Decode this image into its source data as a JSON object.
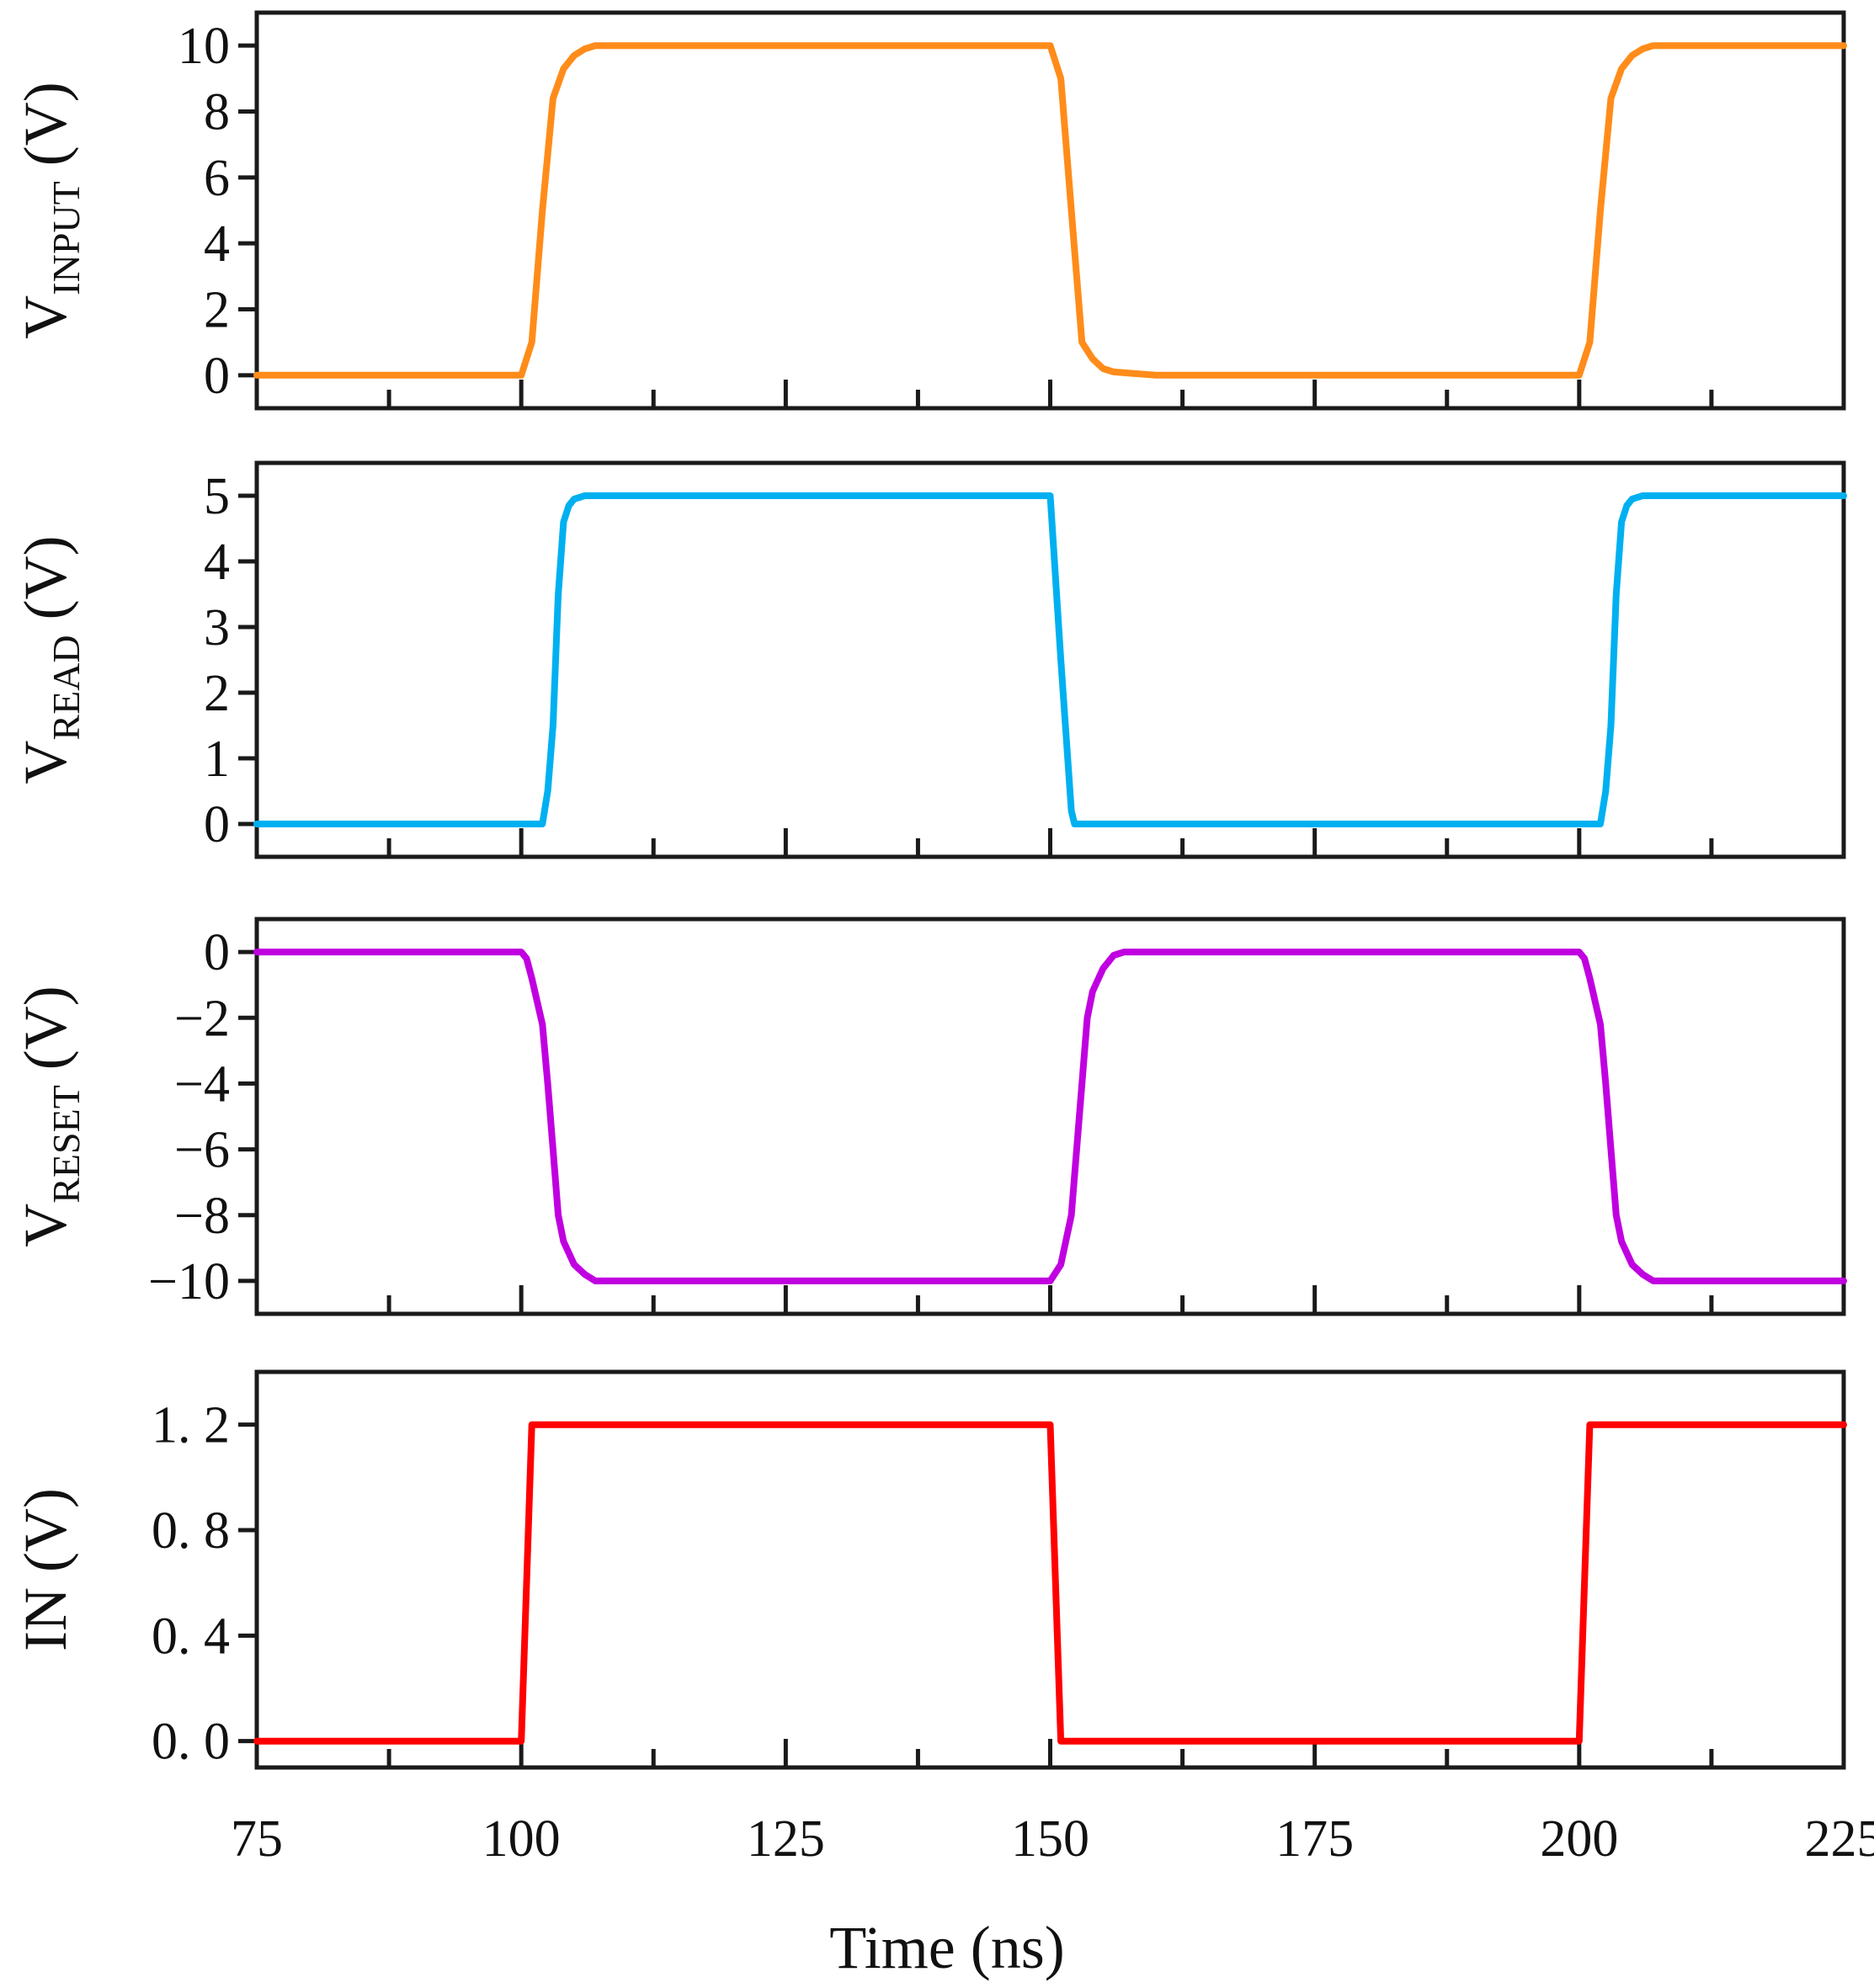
{
  "chart_data": {
    "type": "line",
    "xlabel": "Time (ns)",
    "xlim": [
      75,
      225
    ],
    "x_ticks": [
      75,
      100,
      125,
      150,
      175,
      200,
      225
    ],
    "x_tick_labels": [
      "75",
      "100",
      "125",
      "150",
      "175",
      "200",
      "225"
    ],
    "panels": [
      {
        "ylabel": {
          "main": "V",
          "sub": "INPUT",
          "unit": " (V)"
        },
        "ylim": [
          -1,
          11
        ],
        "y_ticks": [
          0,
          2,
          4,
          6,
          8,
          10
        ],
        "y_tick_labels": [
          "0",
          "2",
          "4",
          "6",
          "8",
          "10"
        ],
        "series": [
          {
            "name": "V_INPUT",
            "color": "#ff8c1a",
            "x": [
              75,
              100,
              101,
              102,
              103,
              104,
              105,
              106,
              107,
              110,
              150,
              151,
              152,
              153,
              154,
              155,
              156,
              158,
              160,
              200,
              201,
              202,
              203,
              204,
              205,
              206,
              207,
              210,
              225
            ],
            "y": [
              0,
              0,
              1,
              5,
              8.4,
              9.3,
              9.7,
              9.9,
              10,
              10,
              10,
              9,
              5,
              1,
              0.5,
              0.2,
              0.1,
              0.05,
              0,
              0,
              1,
              5,
              8.4,
              9.3,
              9.7,
              9.9,
              10,
              10,
              10
            ]
          }
        ]
      },
      {
        "ylabel": {
          "main": "V",
          "sub": "READ",
          "unit": " (V)"
        },
        "ylim": [
          -0.5,
          5.5
        ],
        "y_ticks": [
          0,
          1,
          2,
          3,
          4,
          5
        ],
        "y_tick_labels": [
          "0",
          "1",
          "2",
          "3",
          "4",
          "5"
        ],
        "series": [
          {
            "name": "V_READ",
            "color": "#00b0f0",
            "x": [
              75,
              102,
              102.5,
              103,
              103.5,
              104,
              104.5,
              105,
              106,
              110,
              150,
              151,
              152,
              152.3,
              202,
              202.5,
              203,
              203.5,
              204,
              204.5,
              205,
              206,
              210,
              225
            ],
            "y": [
              0,
              0,
              0.5,
              1.5,
              3.5,
              4.6,
              4.85,
              4.95,
              5,
              5,
              5,
              2.5,
              0.2,
              0,
              0,
              0.5,
              1.5,
              3.5,
              4.6,
              4.85,
              4.95,
              5,
              5,
              5
            ]
          }
        ]
      },
      {
        "ylabel": {
          "main": "V",
          "sub": "RESET",
          "unit": " (V)"
        },
        "ylim": [
          -11,
          1
        ],
        "y_ticks": [
          0,
          -2,
          -4,
          -6,
          -8,
          -10
        ],
        "y_tick_labels": [
          "0",
          "−2",
          "−4",
          "−6",
          "−8",
          "−10"
        ],
        "series": [
          {
            "name": "V_RESET",
            "color": "#c000e0",
            "x": [
              75,
              100,
              100.5,
              101,
              101.5,
              102,
              102.5,
              103,
              103.5,
              104,
              105,
              106,
              107,
              110,
              150,
              151,
              152,
              152.5,
              153,
              153.5,
              154,
              155,
              156,
              157,
              160,
              200,
              200.5,
              201,
              201.5,
              202,
              202.5,
              203,
              203.5,
              204,
              205,
              206,
              207,
              210,
              225
            ],
            "y": [
              0,
              0,
              -0.2,
              -0.8,
              -1.5,
              -2.2,
              -4,
              -6,
              -8,
              -8.8,
              -9.5,
              -9.8,
              -10,
              -10,
              -10,
              -9.5,
              -8,
              -6,
              -4,
              -2,
              -1.2,
              -0.5,
              -0.1,
              0,
              0,
              0,
              -0.2,
              -0.8,
              -1.5,
              -2.2,
              -4,
              -6,
              -8,
              -8.8,
              -9.5,
              -9.8,
              -10,
              -10,
              -10
            ]
          }
        ]
      },
      {
        "ylabel": {
          "main": "IN",
          "sub": "",
          "unit": " (V)"
        },
        "ylim": [
          -0.1,
          1.4
        ],
        "y_ticks": [
          0,
          0.4,
          0.8,
          1.2
        ],
        "y_tick_labels": [
          "0. 0",
          "0. 4",
          "0. 8",
          "1. 2"
        ],
        "series": [
          {
            "name": "IN",
            "color": "#ff0000",
            "x": [
              75,
              100,
              100.5,
              101,
              110,
              150,
              150.5,
              151,
              160,
              200,
              200.5,
              201,
              210,
              225
            ],
            "y": [
              0,
              0,
              0.6,
              1.2,
              1.2,
              1.2,
              0.6,
              0,
              0,
              0,
              0.6,
              1.2,
              1.2,
              1.2
            ]
          }
        ]
      }
    ]
  }
}
